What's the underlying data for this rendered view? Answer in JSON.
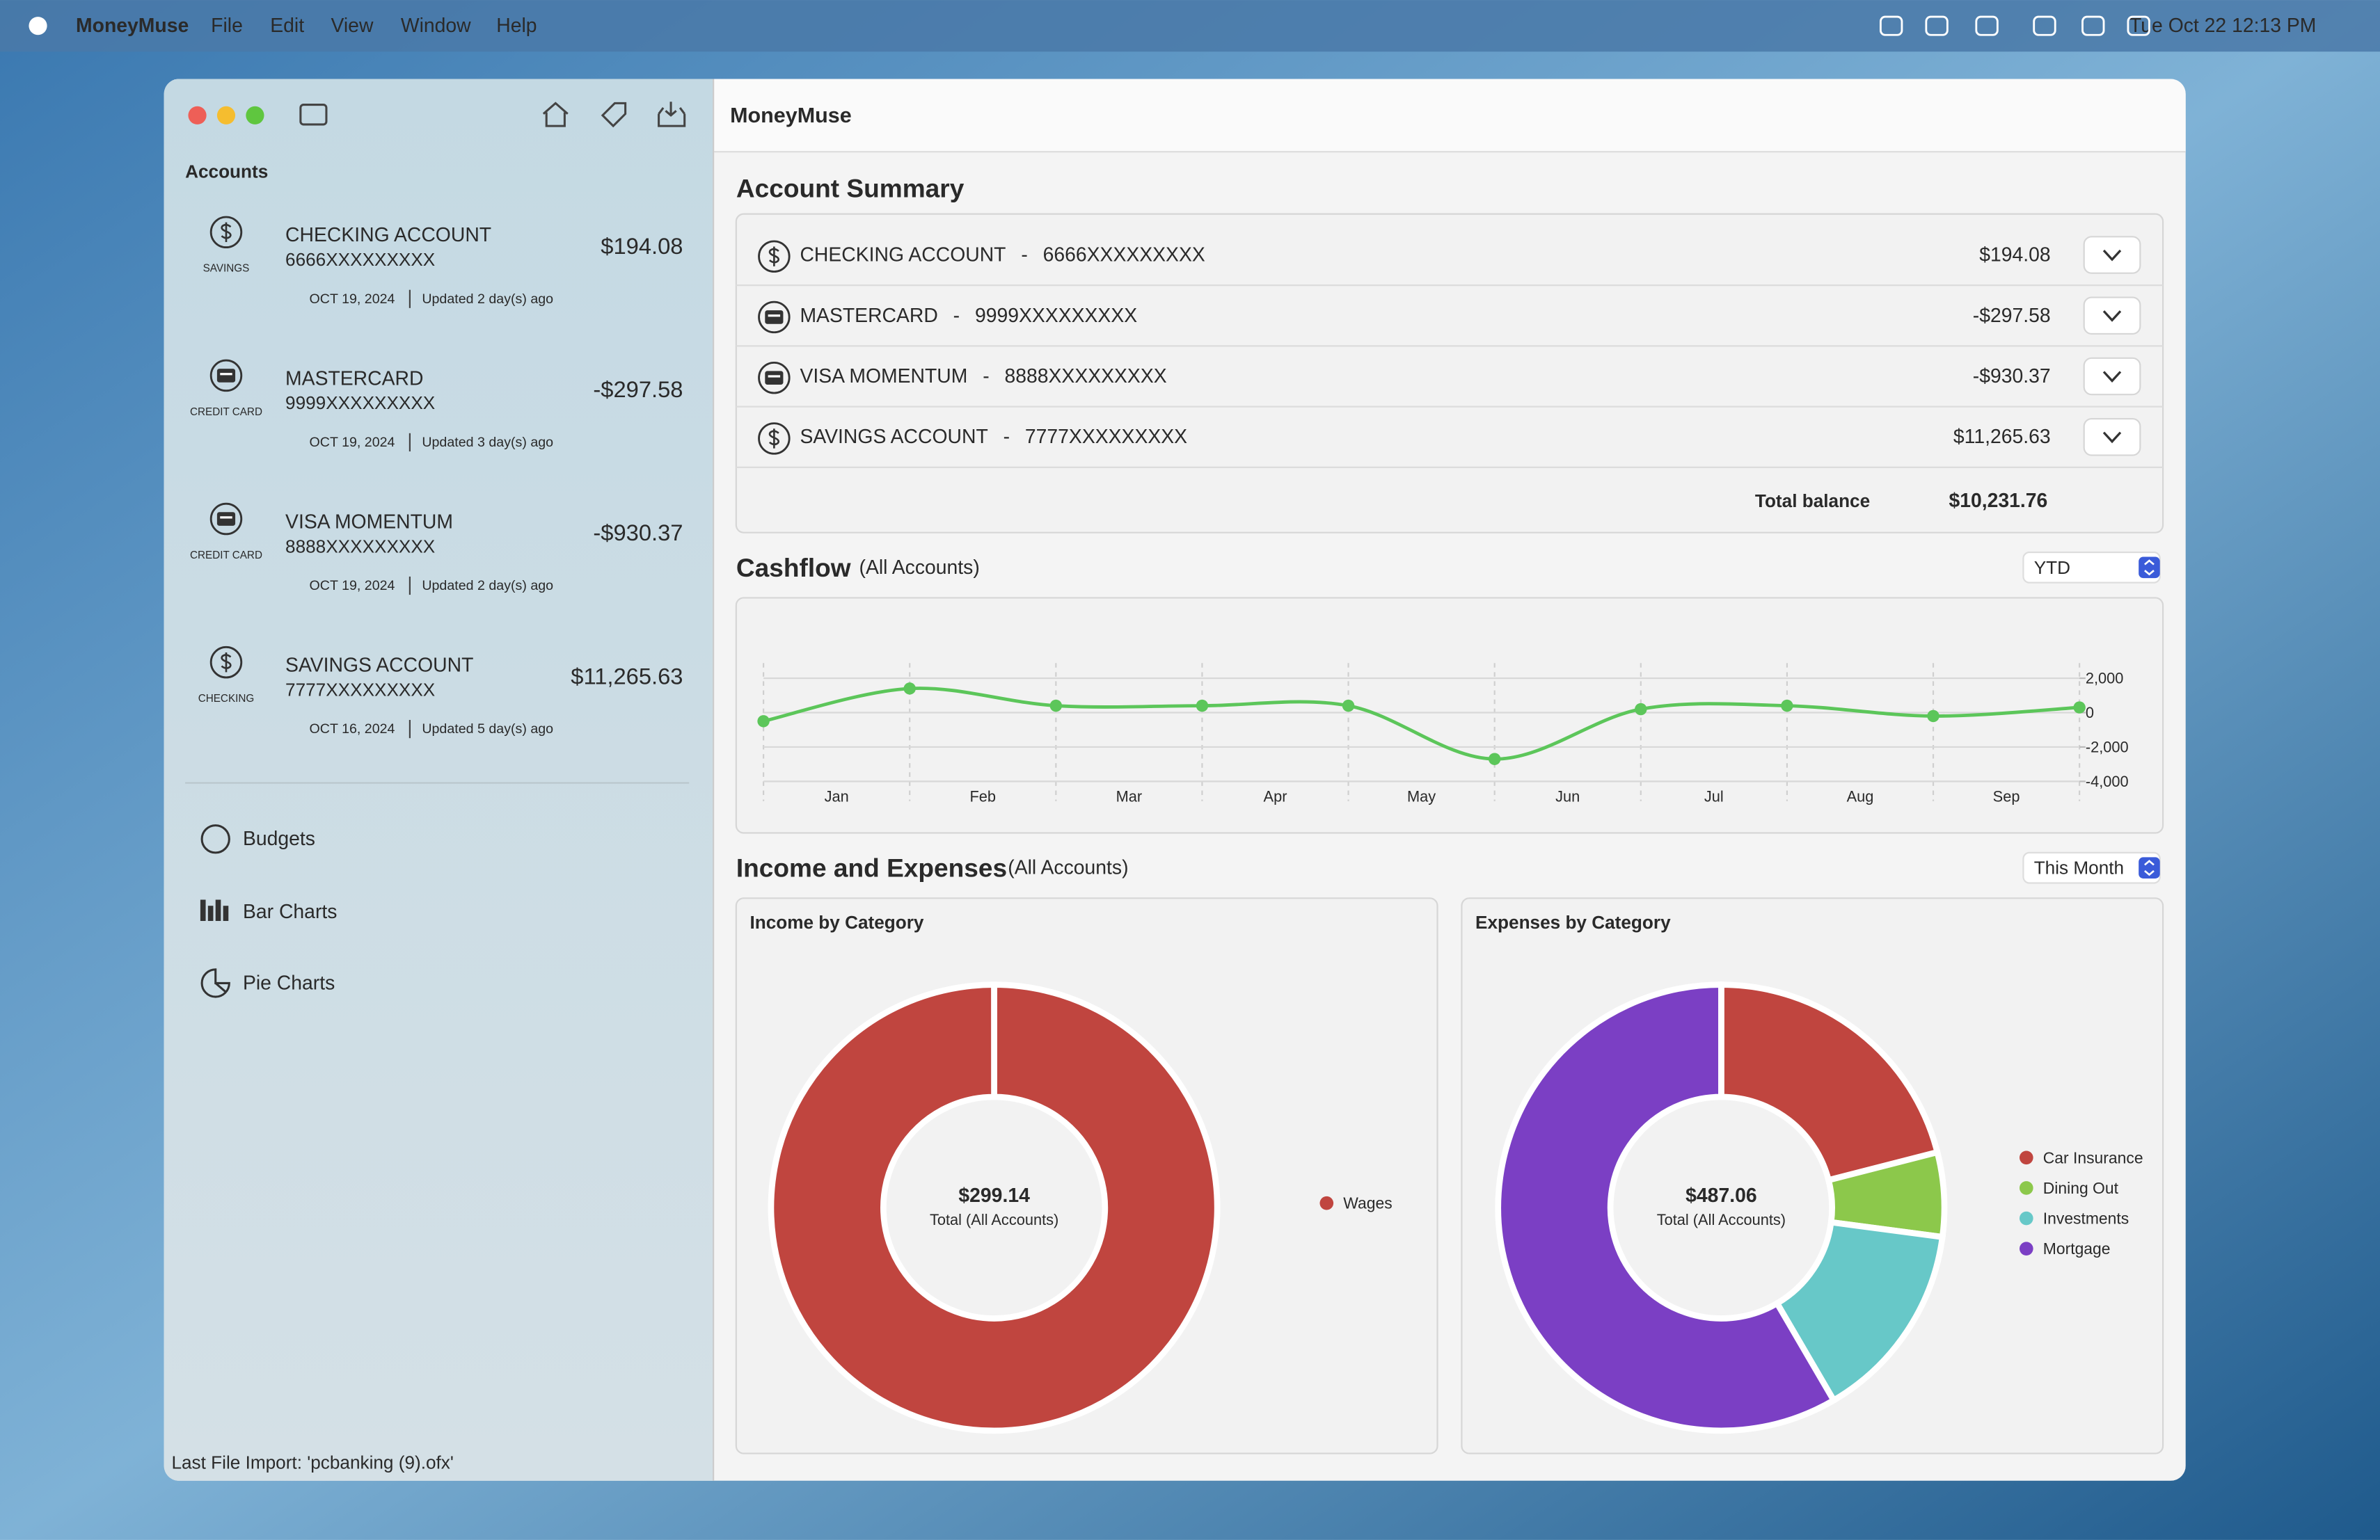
{
  "menubar": {
    "app": "MoneyMuse",
    "menus": [
      "File",
      "Edit",
      "View",
      "Window",
      "Help"
    ],
    "clock": "Tue Oct 22  12:13 PM"
  },
  "window_title": "MoneyMuse",
  "sidebar": {
    "heading": "Accounts",
    "accounts": [
      {
        "name": "CHECKING ACCOUNT",
        "number": "6666XXXXXXXXX",
        "balance": "$194.08",
        "kind": "SAVINGS",
        "icon": "dollar",
        "date": "OCT 19, 2024",
        "updated": "Updated 2 day(s) ago"
      },
      {
        "name": "MASTERCARD",
        "number": "9999XXXXXXXXX",
        "balance": "-$297.58",
        "kind": "CREDIT CARD",
        "icon": "card",
        "date": "OCT 19, 2024",
        "updated": "Updated 3 day(s) ago"
      },
      {
        "name": "VISA MOMENTUM",
        "number": "8888XXXXXXXXX",
        "balance": "-$930.37",
        "kind": "CREDIT CARD",
        "icon": "card",
        "date": "OCT 19, 2024",
        "updated": "Updated 2 day(s) ago"
      },
      {
        "name": "SAVINGS ACCOUNT",
        "number": "7777XXXXXXXXX",
        "balance": "$11,265.63",
        "kind": "CHECKING",
        "icon": "dollar",
        "date": "OCT 16, 2024",
        "updated": "Updated 5 day(s) ago"
      }
    ],
    "nav": [
      "Budgets",
      "Bar Charts",
      "Pie Charts"
    ],
    "footer": "Last File Import: 'pcbanking (9).ofx'"
  },
  "summary": {
    "title": "Account Summary",
    "separator": "-",
    "rows": [
      {
        "name": "CHECKING ACCOUNT",
        "number": "6666XXXXXXXXX",
        "balance": "$194.08",
        "icon": "dollar"
      },
      {
        "name": "MASTERCARD",
        "number": "9999XXXXXXXXX",
        "balance": "-$297.58",
        "icon": "card"
      },
      {
        "name": "VISA MOMENTUM",
        "number": "8888XXXXXXXXX",
        "balance": "-$930.37",
        "icon": "card"
      },
      {
        "name": "SAVINGS ACCOUNT",
        "number": "7777XXXXXXXXX",
        "balance": "$11,265.63",
        "icon": "dollar"
      }
    ],
    "total_label": "Total balance",
    "total": "$10,231.76"
  },
  "cashflow": {
    "title": "Cashflow",
    "scope": "(All Accounts)",
    "period": "YTD",
    "chart_data": {
      "type": "line",
      "xticks": [
        "Jan",
        "Feb",
        "Mar",
        "Apr",
        "May",
        "Jun",
        "Jul",
        "Aug",
        "Sep"
      ],
      "values": [
        -500,
        1400,
        400,
        400,
        400,
        -2700,
        200,
        400,
        -200,
        300
      ],
      "color": "#5cc65a",
      "ylim": [
        -4000,
        2000
      ],
      "yticks": [
        {
          "value": 2000,
          "label": "2,000"
        },
        0,
        {
          "value": -2000,
          "label": "-2,000"
        },
        {
          "value": -4000,
          "label": "-4,000"
        }
      ],
      "grid": true
    }
  },
  "income_expenses": {
    "title": "Income and Expenses",
    "scope": "(All Accounts)",
    "period": "This Month",
    "charts": [
      {
        "type": "pie",
        "title": "Income by Category",
        "center_value": "$299.14",
        "center_label": "Total (All Accounts)",
        "categories": [
          "Wages"
        ],
        "values": [
          299.14
        ],
        "colors": [
          "#c0453f"
        ]
      },
      {
        "type": "pie",
        "title": "Expenses by Category",
        "center_value": "$487.06",
        "center_label": "Total (All Accounts)",
        "categories": [
          "Car Insurance",
          "Dining Out",
          "Investments",
          "Mortgage"
        ],
        "values": [
          102.28,
          29.7,
          70.6,
          284.48
        ],
        "colors": [
          "#c0453f",
          "#8cc84b",
          "#67c8c8",
          "#7b3fc4"
        ]
      }
    ]
  }
}
